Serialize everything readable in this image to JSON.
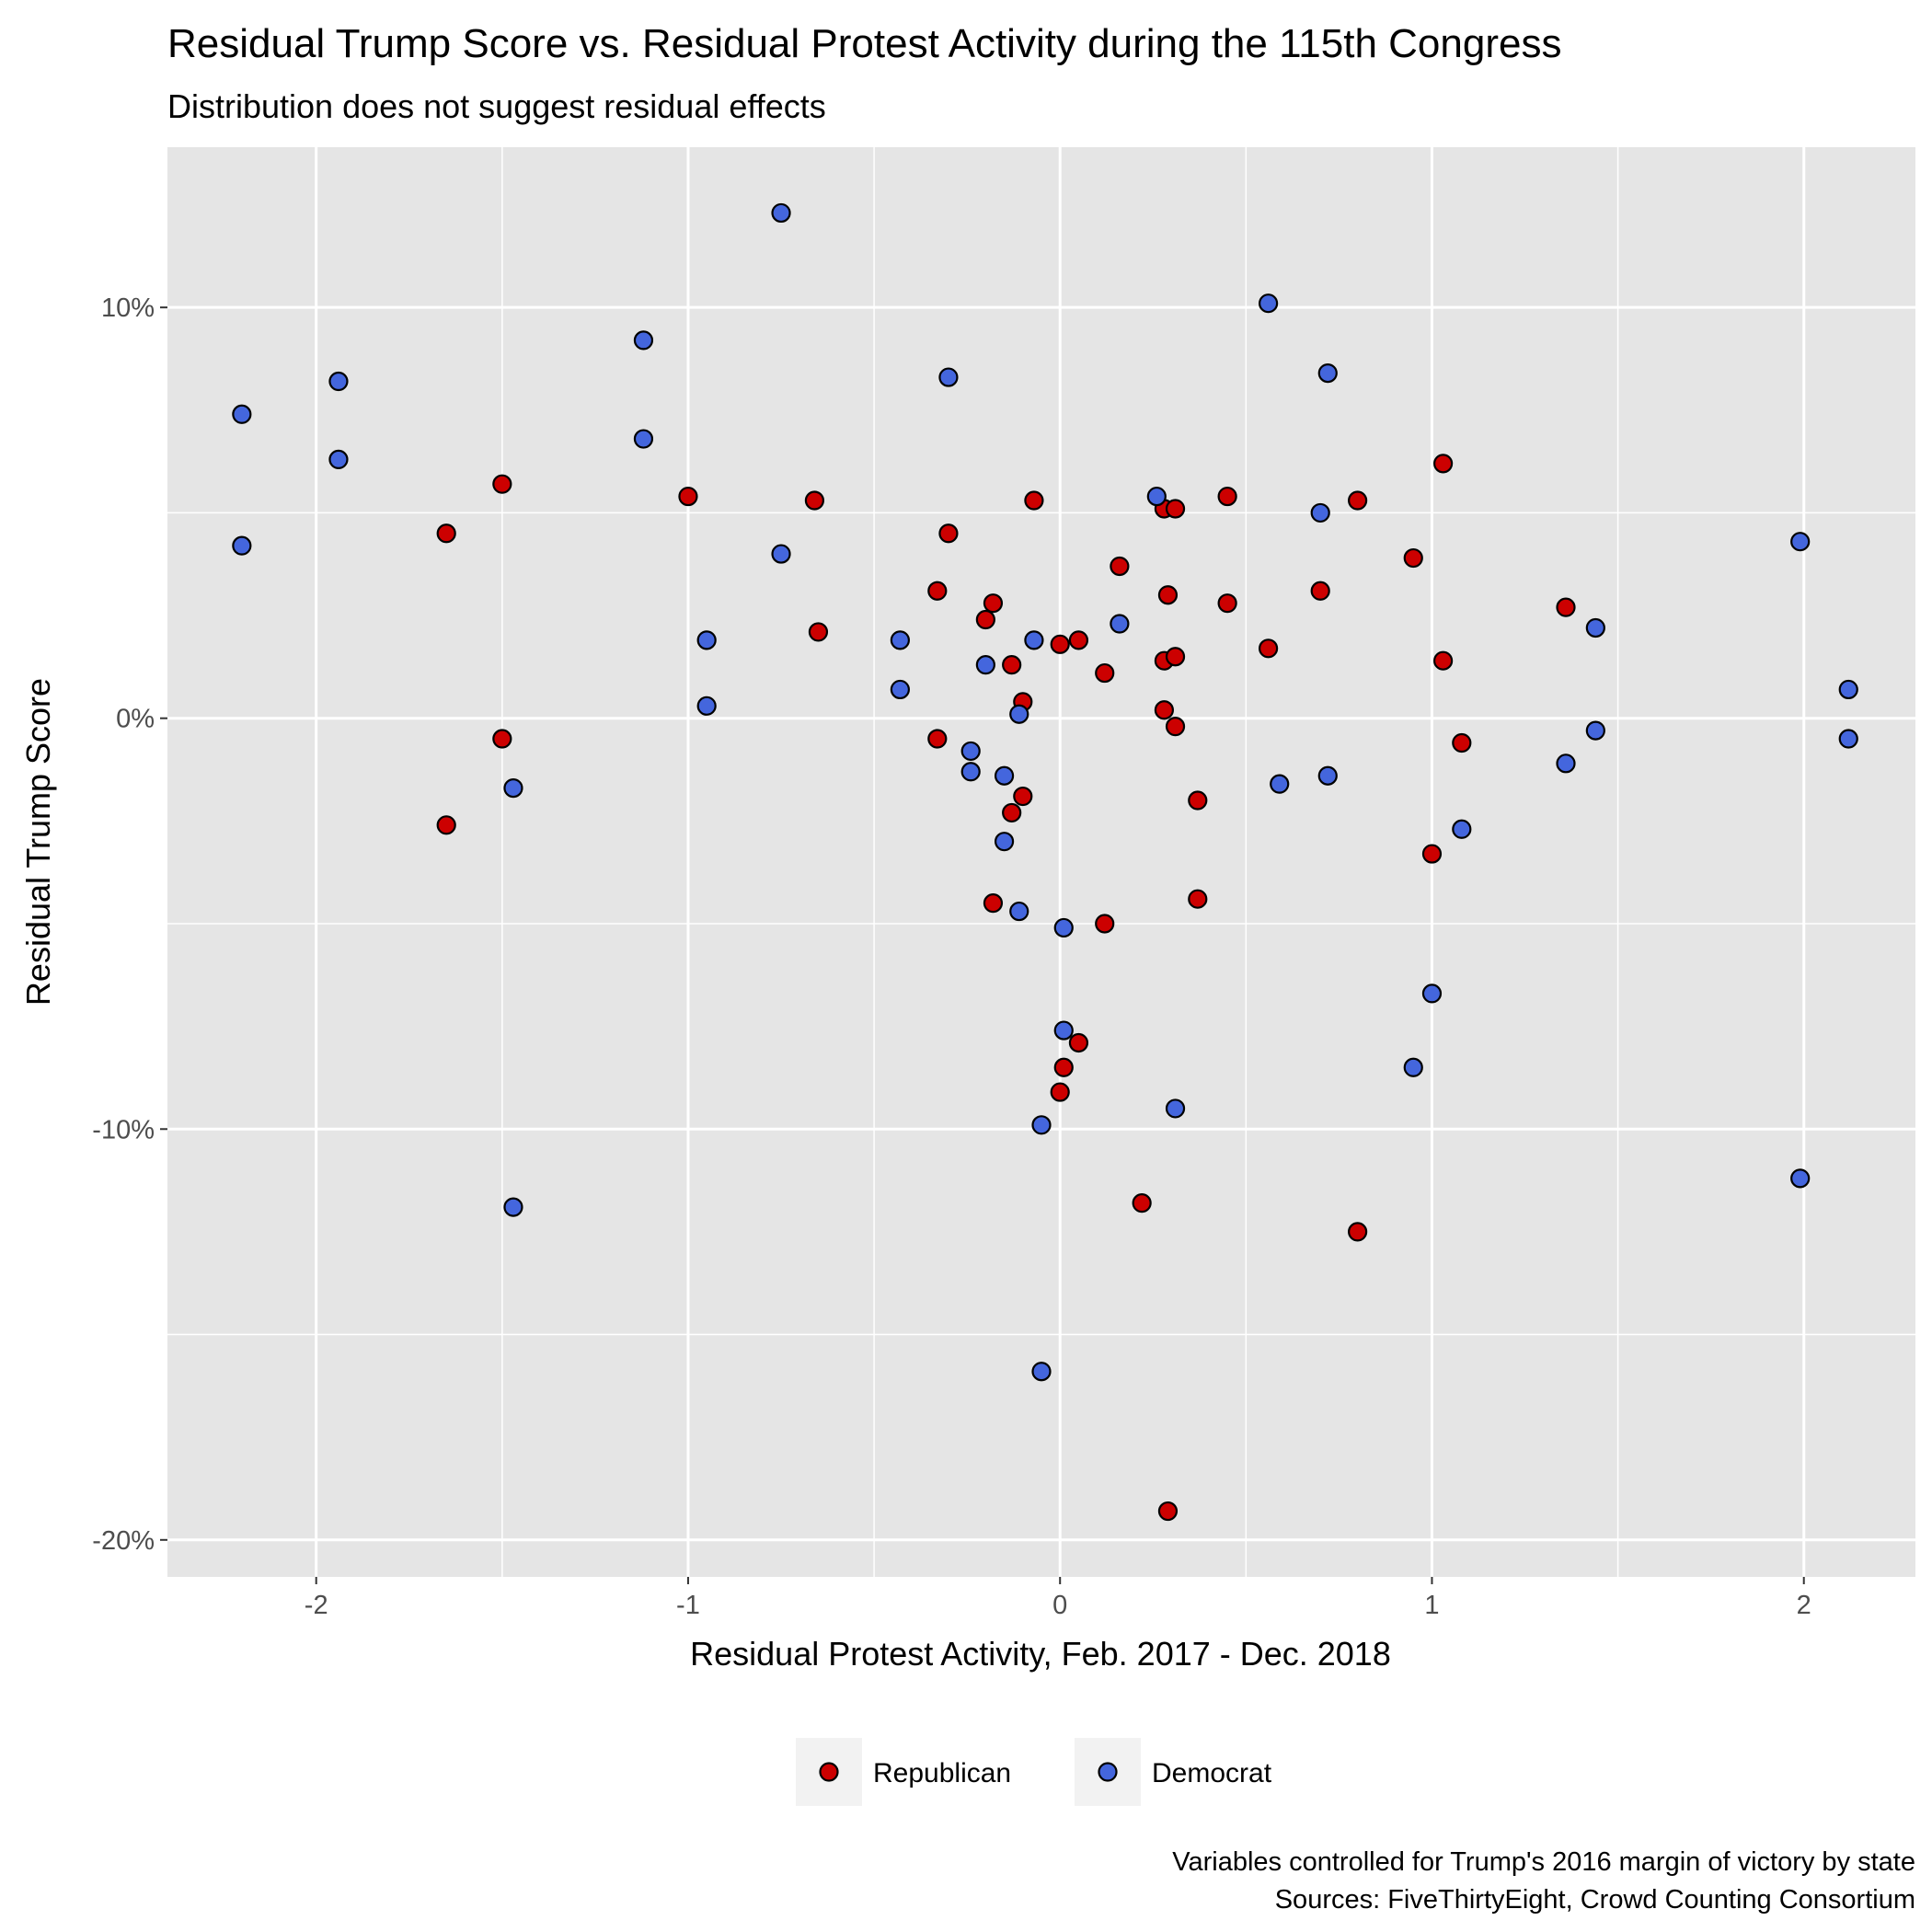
{
  "chart_data": {
    "type": "scatter",
    "title": "Residual Trump Score vs. Residual Protest Activity during the 115th Congress",
    "subtitle": "Distribution does not suggest residual effects",
    "xlabel": "Residual Protest Activity, Feb. 2017 - Dec. 2018",
    "ylabel": "Residual Trump Score",
    "xlim": [
      -2.4,
      2.3
    ],
    "ylim": [
      -0.209,
      0.139
    ],
    "x_ticks": [
      -2,
      -1,
      0,
      1,
      2
    ],
    "x_tick_labels": [
      "-2",
      "-1",
      "0",
      "1",
      "2"
    ],
    "y_ticks": [
      0.1,
      0.0,
      -0.1,
      -0.2
    ],
    "y_tick_labels": [
      "10%",
      "0%",
      "-10%",
      "-20%"
    ],
    "grid": true,
    "legend_position": "bottom",
    "caption": [
      "Variables controlled for Trump's 2016 margin of victory by state",
      "Sources: FiveThirtyEight, Crowd Counting Consortium"
    ],
    "colors": {
      "panel": "#e5e5e5",
      "grid": "#ffffff",
      "Republican": "#cc0000",
      "Democrat": "#4466dd",
      "outline": "#000000"
    },
    "series": [
      {
        "name": "Republican",
        "points": [
          [
            -1.65,
            0.045
          ],
          [
            -1.5,
            0.057
          ],
          [
            -1.5,
            -0.005
          ],
          [
            -1.65,
            -0.026
          ],
          [
            -1.0,
            0.054
          ],
          [
            -0.66,
            0.053
          ],
          [
            -0.65,
            0.021
          ],
          [
            -0.33,
            0.031
          ],
          [
            -0.3,
            0.045
          ],
          [
            -0.33,
            -0.005
          ],
          [
            -0.2,
            0.024
          ],
          [
            -0.18,
            0.028
          ],
          [
            -0.07,
            0.053
          ],
          [
            -0.13,
            0.013
          ],
          [
            -0.1,
            0.004
          ],
          [
            -0.1,
            -0.019
          ],
          [
            -0.13,
            -0.023
          ],
          [
            -0.18,
            -0.045
          ],
          [
            0.0,
            0.018
          ],
          [
            0.05,
            0.019
          ],
          [
            0.12,
            0.011
          ],
          [
            0.16,
            0.037
          ],
          [
            0.28,
            0.051
          ],
          [
            0.31,
            0.051
          ],
          [
            0.29,
            0.03
          ],
          [
            0.28,
            0.014
          ],
          [
            0.31,
            0.015
          ],
          [
            0.28,
            0.002
          ],
          [
            0.31,
            -0.002
          ],
          [
            0.37,
            -0.02
          ],
          [
            0.37,
            -0.044
          ],
          [
            0.12,
            -0.05
          ],
          [
            0.05,
            -0.079
          ],
          [
            0.01,
            -0.085
          ],
          [
            0.0,
            -0.091
          ],
          [
            0.22,
            -0.118
          ],
          [
            0.29,
            -0.193
          ],
          [
            0.45,
            0.054
          ],
          [
            0.45,
            0.028
          ],
          [
            0.56,
            0.017
          ],
          [
            0.7,
            0.031
          ],
          [
            0.8,
            0.053
          ],
          [
            0.8,
            -0.125
          ],
          [
            0.95,
            0.039
          ],
          [
            1.03,
            0.062
          ],
          [
            1.03,
            0.014
          ],
          [
            1.08,
            -0.006
          ],
          [
            1.0,
            -0.033
          ],
          [
            1.36,
            0.027
          ]
        ]
      },
      {
        "name": "Democrat",
        "points": [
          [
            -2.2,
            0.074
          ],
          [
            -2.2,
            0.042
          ],
          [
            -1.94,
            0.082
          ],
          [
            -1.94,
            0.063
          ],
          [
            -1.47,
            -0.017
          ],
          [
            -1.47,
            -0.119
          ],
          [
            -1.12,
            0.092
          ],
          [
            -1.12,
            0.068
          ],
          [
            -0.95,
            0.019
          ],
          [
            -0.95,
            0.003
          ],
          [
            -0.75,
            0.123
          ],
          [
            -0.75,
            0.04
          ],
          [
            -0.43,
            0.019
          ],
          [
            -0.43,
            0.007
          ],
          [
            -0.3,
            0.083
          ],
          [
            -0.24,
            -0.008
          ],
          [
            -0.24,
            -0.013
          ],
          [
            -0.2,
            0.013
          ],
          [
            -0.15,
            -0.014
          ],
          [
            -0.15,
            -0.03
          ],
          [
            -0.11,
            0.001
          ],
          [
            -0.11,
            -0.047
          ],
          [
            -0.07,
            0.019
          ],
          [
            0.01,
            -0.051
          ],
          [
            0.01,
            -0.076
          ],
          [
            -0.05,
            -0.099
          ],
          [
            -0.05,
            -0.159
          ],
          [
            0.16,
            0.023
          ],
          [
            0.26,
            0.054
          ],
          [
            0.31,
            -0.095
          ],
          [
            0.56,
            0.101
          ],
          [
            0.59,
            -0.016
          ],
          [
            0.7,
            0.05
          ],
          [
            0.72,
            0.084
          ],
          [
            0.72,
            -0.014
          ],
          [
            0.95,
            -0.085
          ],
          [
            1.0,
            -0.067
          ],
          [
            1.08,
            -0.027
          ],
          [
            1.36,
            -0.011
          ],
          [
            1.44,
            0.022
          ],
          [
            1.44,
            -0.003
          ],
          [
            1.99,
            0.043
          ],
          [
            1.99,
            -0.112
          ],
          [
            2.12,
            0.007
          ],
          [
            2.12,
            -0.005
          ]
        ]
      }
    ]
  }
}
